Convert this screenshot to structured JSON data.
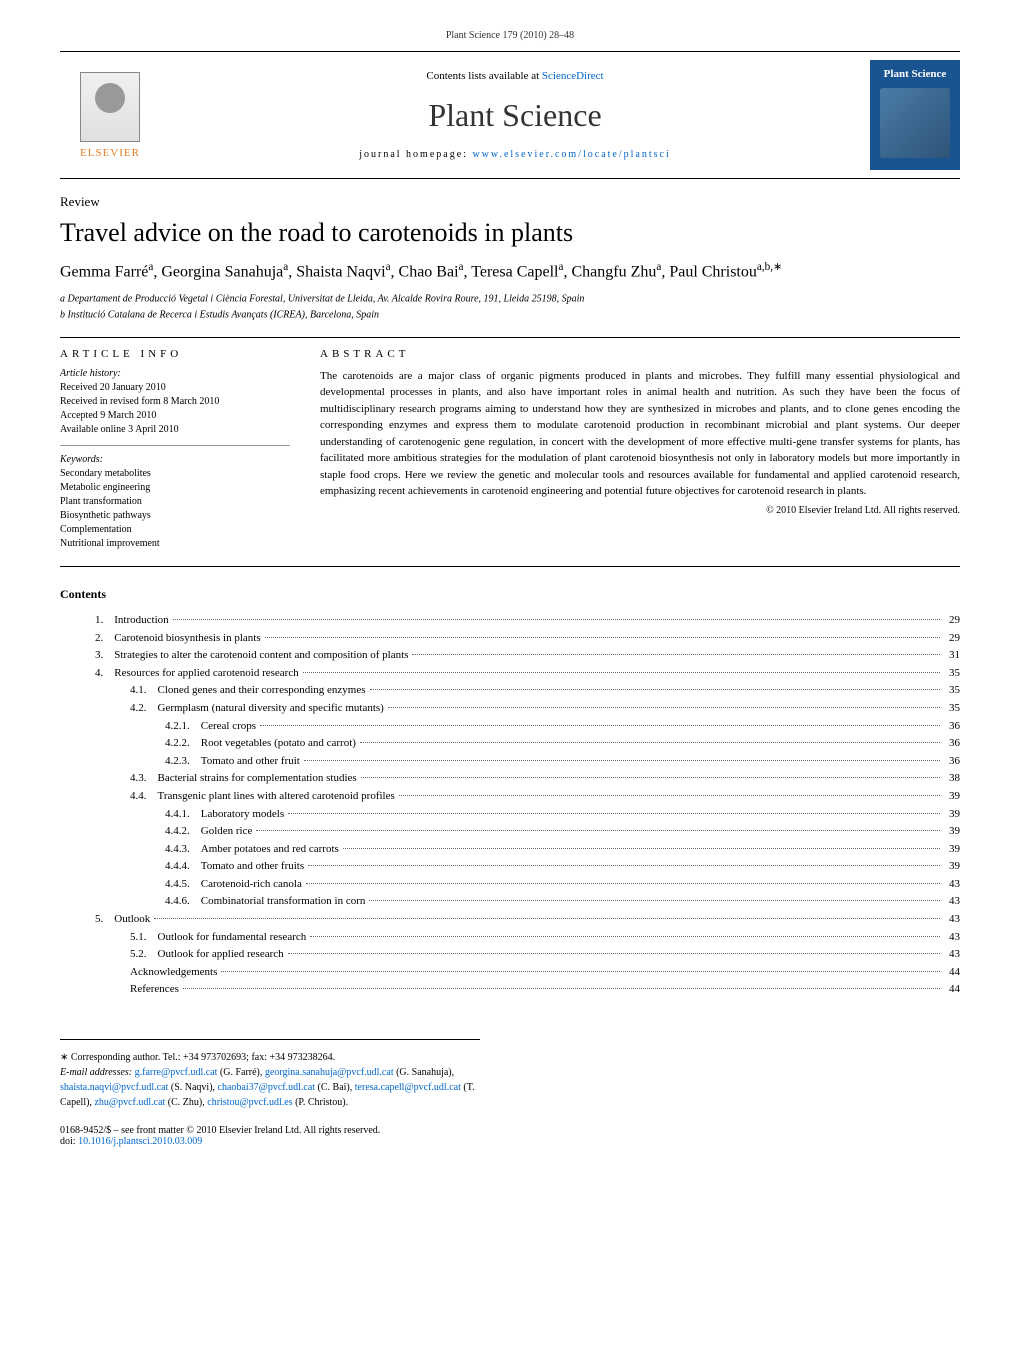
{
  "header": {
    "citation": "Plant Science 179 (2010) 28–48",
    "contents_prefix": "Contents lists available at ",
    "sciencedirect": "ScienceDirect",
    "journal_title": "Plant Science",
    "homepage_prefix": "journal homepage: ",
    "homepage_url": "www.elsevier.com/locate/plantsci",
    "elsevier_label": "ELSEVIER",
    "cover_label": "Plant Science"
  },
  "article": {
    "type": "Review",
    "title": "Travel advice on the road to carotenoids in plants",
    "authors_html": "Gemma Farré<sup>a</sup>, Georgina Sanahuja<sup>a</sup>, Shaista Naqvi<sup>a</sup>, Chao Bai<sup>a</sup>, Teresa Capell<sup>a</sup>, Changfu Zhu<sup>a</sup>, Paul Christou<sup>a,b,∗</sup>",
    "affiliation_a": "a Departament de Producció Vegetal i Ciència Forestal, Universitat de Lleida, Av. Alcalde Rovira Roure, 191, Lleida 25198, Spain",
    "affiliation_b": "b Institució Catalana de Recerca i Estudis Avançats (ICREA), Barcelona, Spain"
  },
  "info": {
    "header": "ARTICLE INFO",
    "history_label": "Article history:",
    "history": [
      "Received 20 January 2010",
      "Received in revised form 8 March 2010",
      "Accepted 9 March 2010",
      "Available online 3 April 2010"
    ],
    "keywords_label": "Keywords:",
    "keywords": [
      "Secondary metabolites",
      "Metabolic engineering",
      "Plant transformation",
      "Biosynthetic pathways",
      "Complementation",
      "Nutritional improvement"
    ]
  },
  "abstract": {
    "header": "ABSTRACT",
    "text": "The carotenoids are a major class of organic pigments produced in plants and microbes. They fulfill many essential physiological and developmental processes in plants, and also have important roles in animal health and nutrition. As such they have been the focus of multidisciplinary research programs aiming to understand how they are synthesized in microbes and plants, and to clone genes encoding the corresponding enzymes and express them to modulate carotenoid production in recombinant microbial and plant systems. Our deeper understanding of carotenogenic gene regulation, in concert with the development of more effective multi-gene transfer systems for plants, has facilitated more ambitious strategies for the modulation of plant carotenoid biosynthesis not only in laboratory models but more importantly in staple food crops. Here we review the genetic and molecular tools and resources available for fundamental and applied carotenoid research, emphasizing recent achievements in carotenoid engineering and potential future objectives for carotenoid research in plants.",
    "copyright": "© 2010 Elsevier Ireland Ltd. All rights reserved."
  },
  "contents": {
    "title": "Contents",
    "entries": [
      {
        "num": "1.",
        "indent": 1,
        "text": "Introduction",
        "page": "29"
      },
      {
        "num": "2.",
        "indent": 1,
        "text": "Carotenoid biosynthesis in plants",
        "page": "29"
      },
      {
        "num": "3.",
        "indent": 1,
        "text": "Strategies to alter the carotenoid content and composition of plants",
        "page": "31"
      },
      {
        "num": "4.",
        "indent": 1,
        "text": "Resources for applied carotenoid research",
        "page": "35"
      },
      {
        "num": "4.1.",
        "indent": 2,
        "text": "Cloned genes and their corresponding enzymes",
        "page": "35"
      },
      {
        "num": "4.2.",
        "indent": 2,
        "text": "Germplasm (natural diversity and specific mutants)",
        "page": "35"
      },
      {
        "num": "4.2.1.",
        "indent": 3,
        "text": "Cereal crops",
        "page": "36"
      },
      {
        "num": "4.2.2.",
        "indent": 3,
        "text": "Root vegetables (potato and carrot)",
        "page": "36"
      },
      {
        "num": "4.2.3.",
        "indent": 3,
        "text": "Tomato and other fruit",
        "page": "36"
      },
      {
        "num": "4.3.",
        "indent": 2,
        "text": "Bacterial strains for complementation studies",
        "page": "38"
      },
      {
        "num": "4.4.",
        "indent": 2,
        "text": "Transgenic plant lines with altered carotenoid profiles",
        "page": "39"
      },
      {
        "num": "4.4.1.",
        "indent": 3,
        "text": "Laboratory models",
        "page": "39"
      },
      {
        "num": "4.4.2.",
        "indent": 3,
        "text": "Golden rice",
        "page": "39"
      },
      {
        "num": "4.4.3.",
        "indent": 3,
        "text": "Amber potatoes and red carrots",
        "page": "39"
      },
      {
        "num": "4.4.4.",
        "indent": 3,
        "text": "Tomato and other fruits",
        "page": "39"
      },
      {
        "num": "4.4.5.",
        "indent": 3,
        "text": "Carotenoid-rich canola",
        "page": "43"
      },
      {
        "num": "4.4.6.",
        "indent": 3,
        "text": "Combinatorial transformation in corn",
        "page": "43"
      },
      {
        "num": "5.",
        "indent": 1,
        "text": "Outlook",
        "page": "43"
      },
      {
        "num": "5.1.",
        "indent": 2,
        "text": "Outlook for fundamental research",
        "page": "43"
      },
      {
        "num": "5.2.",
        "indent": 2,
        "text": "Outlook for applied research",
        "page": "43"
      },
      {
        "num": "",
        "indent": 2,
        "text": "Acknowledgements",
        "page": "44"
      },
      {
        "num": "",
        "indent": 2,
        "text": "References",
        "page": "44"
      }
    ]
  },
  "footer": {
    "corresponding": "∗ Corresponding author. Tel.: +34 973702693; fax: +34 973238264.",
    "email_label": "E-mail addresses: ",
    "emails": [
      {
        "addr": "g.farre@pvcf.udl.cat",
        "person": " (G. Farré), "
      },
      {
        "addr": "georgina.sanahuja@pvcf.udl.cat",
        "person": " (G. Sanahuja), "
      },
      {
        "addr": "shaista.naqvi@pvcf.udl.cat",
        "person": " (S. Naqvi), "
      },
      {
        "addr": "chaobai37@pvcf.udl.cat",
        "person": " (C. Bai), "
      },
      {
        "addr": "teresa.capell@pvcf.udl.cat",
        "person": " (T. Capell), "
      },
      {
        "addr": "zhu@pvcf.udl.cat",
        "person": " (C. Zhu), "
      },
      {
        "addr": "christou@pvcf.udl.es",
        "person": " (P. Christou)."
      }
    ],
    "issn": "0168-9452/$ – see front matter © 2010 Elsevier Ireland Ltd. All rights reserved.",
    "doi_prefix": "doi:",
    "doi": "10.1016/j.plantsci.2010.03.009"
  }
}
